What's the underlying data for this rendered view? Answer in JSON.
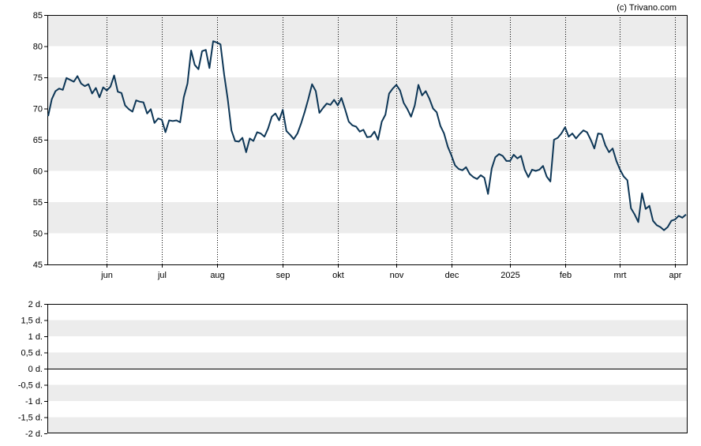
{
  "credit": "(c) Trivano.com",
  "chart_data": [
    {
      "type": "line",
      "title": "",
      "xlabel": "",
      "ylabel": "",
      "ylim": [
        45,
        85
      ],
      "yticks": [
        "85",
        "80",
        "75",
        "70",
        "65",
        "60",
        "55",
        "50",
        "45"
      ],
      "xticks": [
        "jun",
        "jul",
        "aug",
        "sep",
        "okt",
        "nov",
        "dec",
        "2025",
        "feb",
        "mrt",
        "apr"
      ],
      "grid": "banded-horizontal, dotted-vertical",
      "line_color": "#0d3656",
      "band_color": "#ececec",
      "series": [
        {
          "values": [
            68.8,
            71.5,
            72.8,
            73.2,
            73.0,
            74.9,
            74.6,
            74.3,
            75.2,
            74.0,
            73.6,
            73.9,
            72.4,
            73.3,
            71.8,
            73.4,
            72.9,
            73.5,
            75.3,
            72.7,
            72.5,
            70.5,
            69.9,
            69.5,
            71.3,
            71.1,
            71.0,
            69.2,
            69.9,
            67.7,
            68.4,
            68.2,
            66.2,
            68.1,
            68.0,
            68.1,
            67.8,
            71.8,
            74.0,
            79.3,
            77.0,
            76.3,
            79.2,
            79.4,
            76.5,
            80.8,
            80.6,
            80.3,
            75.5,
            71.5,
            66.5,
            64.8,
            64.7,
            65.3,
            63.0,
            65.2,
            64.8,
            66.2,
            66.0,
            65.5,
            66.8,
            68.7,
            69.2,
            68.1,
            69.8,
            66.4,
            65.8,
            65.1,
            66.0,
            67.6,
            69.5,
            71.6,
            73.9,
            72.8,
            69.3,
            70.1,
            70.8,
            70.6,
            71.4,
            70.5,
            71.7,
            69.9,
            67.9,
            67.3,
            67.1,
            66.3,
            66.6,
            65.4,
            65.5,
            66.3,
            65.0,
            67.9,
            69.0,
            72.4,
            73.2,
            73.8,
            72.9,
            70.9,
            69.9,
            68.7,
            70.5,
            73.8,
            72.1,
            72.8,
            71.6,
            70.0,
            69.4,
            67.2,
            66.0,
            63.9,
            62.5,
            60.9,
            60.3,
            60.1,
            60.6,
            59.5,
            59.0,
            58.7,
            59.3,
            58.9,
            56.3,
            60.4,
            62.2,
            62.7,
            62.4,
            61.6,
            61.6,
            62.6,
            62.0,
            62.4,
            60.2,
            59.0,
            60.2,
            60.0,
            60.2,
            60.8,
            59.1,
            58.3,
            65.0,
            65.3,
            66.0,
            67.0,
            65.5,
            66.0,
            65.2,
            65.9,
            66.5,
            66.2,
            65.0,
            63.6,
            66.0,
            65.9,
            64.1,
            63.0,
            63.6,
            61.6,
            60.2,
            59.1,
            58.5,
            54.0,
            53.0,
            51.8,
            56.4,
            53.9,
            54.4,
            52.0,
            51.3,
            51.0,
            50.5,
            51.0,
            52.0,
            52.2,
            52.8,
            52.5,
            53.0
          ]
        }
      ]
    },
    {
      "type": "line",
      "title": "",
      "ylim": [
        -2,
        2
      ],
      "yticks": [
        "2 d.",
        "1,5 d.",
        "1 d.",
        "0,5 d.",
        "0 d.",
        "-0,5 d.",
        "-1 d.",
        "-1,5 d.",
        "-2 d."
      ],
      "grid": "banded-horizontal",
      "series": []
    }
  ]
}
